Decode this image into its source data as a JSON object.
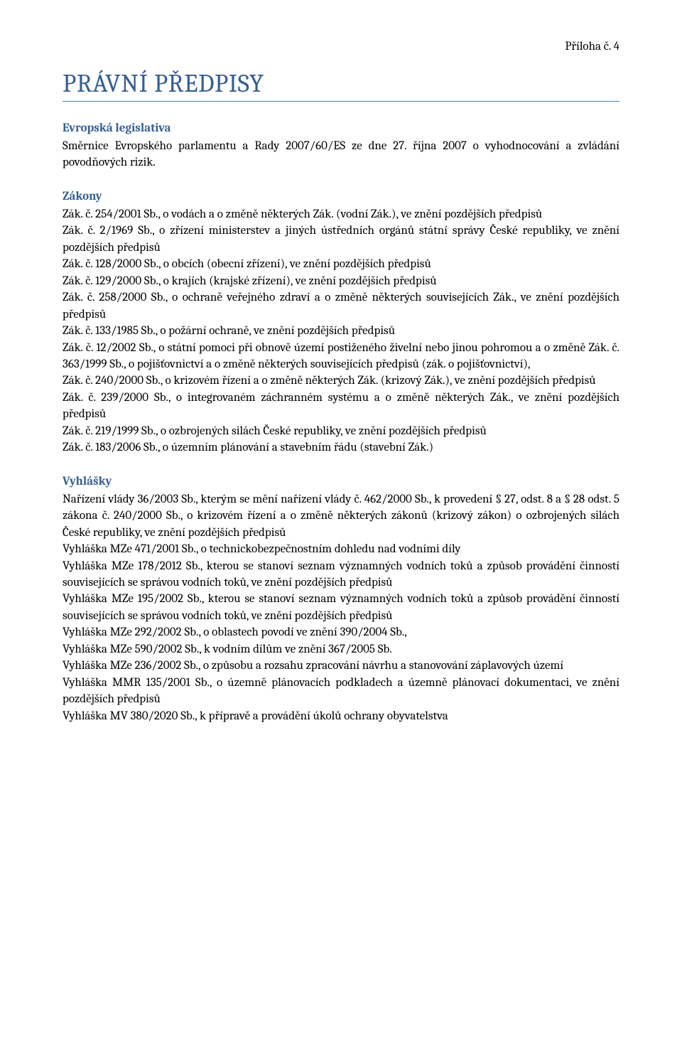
{
  "colors": {
    "heading_blue": "#365f91",
    "rule_blue": "#4f81bd",
    "text": "#000000",
    "background": "#ffffff"
  },
  "typography": {
    "body_fontsize": 17,
    "body_lineheight": 1.38,
    "title_fontsize": 36,
    "title_weight": 400,
    "section_fontsize": 17,
    "section_weight": 700,
    "family": "Cambria, Georgia, serif"
  },
  "header": {
    "annotation": "Příloha č. 4"
  },
  "title": "PRÁVNÍ PŘEDPISY",
  "sections": [
    {
      "heading": "Evropská legislativa",
      "paragraphs": [
        "Směrnice Evropského parlamentu a Rady 2007/60/ES ze dne 27. října 2007 o vyhodnocování a zvládání povodňových rizik."
      ]
    },
    {
      "heading": "Zákony",
      "paragraphs": [
        "Zák. č. 254/2001 Sb., o vodách a o změně některých Zák. (vodní Zák.), ve znění pozdějších předpisů",
        "Zák. č. 2/1969 Sb., o zřízení ministerstev a jiných ústředních orgánů státní správy České republiky, ve znění pozdějších předpisů",
        "Zák. č. 128/2000 Sb., o obcích (obecní zřízení), ve znění pozdějších předpisů",
        "Zák. č. 129/2000 Sb., o krajích (krajské zřízení), ve znění pozdějších předpisů",
        "Zák. č. 258/2000 Sb., o ochraně veřejného zdraví a o změně některých souvisejících Zák., ve znění pozdějších předpisů",
        "Zák. č. 133/1985 Sb., o požární ochraně, ve znění pozdějších předpisů",
        "Zák. č. 12/2002 Sb., o státní pomoci při obnově území postiženého živelní nebo jinou pohromou a o změně Zák. č. 363/1999 Sb., o pojišťovnictví a o změně některých souvisejících předpisů (zák. o pojišťovnictví),",
        "Zák. č. 240/2000 Sb., o krizovém řízení a o změně některých Zák. (krizový Zák.), ve znění pozdějších předpisů",
        "Zák. č. 239/2000 Sb., o integrovaném záchranném systému a o změně některých Zák., ve znění pozdějších předpisů",
        "Zák. č. 219/1999 Sb., o ozbrojených silách České republiky, ve znění pozdějších předpisů",
        "Zák. č. 183/2006 Sb., o územním plánování a stavebním řádu (stavební Zák.)"
      ]
    },
    {
      "heading": "Vyhlášky",
      "paragraphs": [
        "Nařízení vlády 36/2003 Sb., kterým se mění nařízení vlády č. 462/2000 Sb., k provedení § 27, odst. 8 a § 28 odst. 5 zákona č. 240/2000 Sb., o krizovém řízení a o změně některých zákonů (krizový zákon) o ozbrojených silách České republiky, ve znění pozdějších předpisů",
        "Vyhláška MZe 471/2001 Sb., o technickobezpečnostním dohledu nad vodními díly",
        "Vyhláška MZe 178/2012 Sb., kterou se stanoví seznam významných vodních toků a způsob provádění činností souvisejících se správou vodních toků, ve znění pozdějších předpisů",
        "Vyhláška MZe 195/2002 Sb., kterou se stanoví seznam významných vodních toků a způsob provádění činností souvisejících se správou vodních toků, ve znění pozdějších předpisů",
        "Vyhláška MZe 292/2002 Sb., o oblastech povodí ve znění 390/2004 Sb.,",
        "Vyhláška MZe 590/2002 Sb., k vodním dílům ve znění 367/2005 Sb.",
        "Vyhláška MZe 236/2002 Sb., o způsobu a rozsahu zpracování návrhu a stanovování záplavových území",
        "Vyhláška MMR 135/2001 Sb., o územně plánovacích podkladech a územně plánovací dokumentaci, ve znění pozdějších předpisů",
        "Vyhláška MV 380/2020 Sb., k přípravě a provádění úkolů ochrany obyvatelstva"
      ]
    }
  ]
}
